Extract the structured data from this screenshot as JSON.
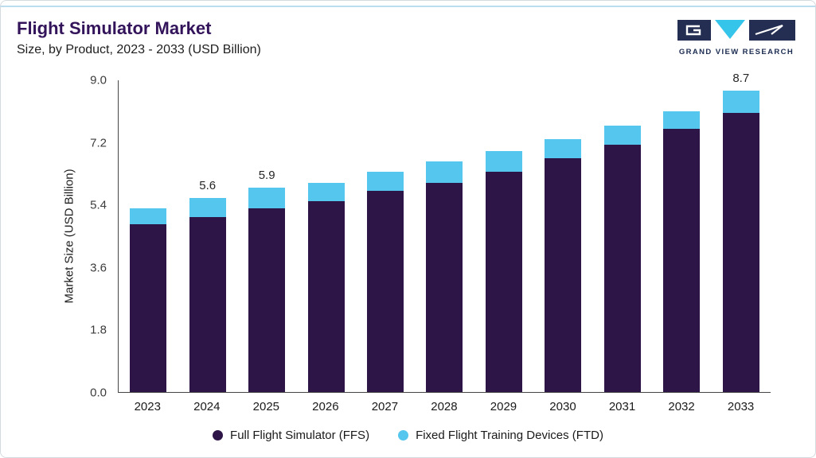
{
  "header": {
    "title": "Flight Simulator Market",
    "subtitle": "Size, by Product, 2023 - 2033 (USD Billion)",
    "logo_text": "GRAND VIEW RESEARCH"
  },
  "colors": {
    "ffs": "#2E1547",
    "ftd": "#55C6ED",
    "accent_line": "#BCDDED",
    "title": "#33135A",
    "logo_navy": "#232E52",
    "logo_cyan": "#35C4EA"
  },
  "chart_data": {
    "type": "bar",
    "stacked": true,
    "title": "Flight Simulator Market Size, by Product, 2023 - 2033 (USD Billion)",
    "xlabel": "",
    "ylabel": "Market Size (USD Billion)",
    "categories": [
      "2023",
      "2024",
      "2025",
      "2026",
      "2027",
      "2028",
      "2029",
      "2030",
      "2031",
      "2032",
      "2033"
    ],
    "series": [
      {
        "name": "Full Flight Simulator (FFS)",
        "color": "#2E1547",
        "values": [
          4.85,
          5.05,
          5.3,
          5.5,
          5.8,
          6.05,
          6.35,
          6.75,
          7.15,
          7.6,
          8.05
        ]
      },
      {
        "name": "Fixed Flight Training Devices (FTD)",
        "color": "#55C6ED",
        "values": [
          0.45,
          0.55,
          0.6,
          0.55,
          0.55,
          0.6,
          0.6,
          0.55,
          0.55,
          0.5,
          0.65
        ]
      }
    ],
    "totals": [
      5.3,
      5.6,
      5.9,
      6.05,
      6.35,
      6.65,
      6.95,
      7.3,
      7.7,
      8.1,
      8.7
    ],
    "total_labels": {
      "2024": "5.6",
      "2025": "5.9",
      "2033": "8.7"
    },
    "yticks": [
      "0.0",
      "1.8",
      "3.6",
      "5.4",
      "7.2",
      "9.0"
    ],
    "ylim": [
      0,
      9.0
    ],
    "grid": false,
    "legend_position": "bottom"
  }
}
